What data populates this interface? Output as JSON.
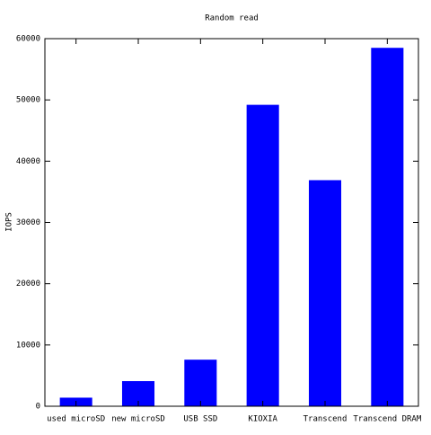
{
  "chart_data": {
    "type": "bar",
    "title": "Random read",
    "y_label": "IOPS",
    "categories": [
      "used microSD",
      "new microSD",
      "USB SSD",
      "KIOXIA",
      "Transcend",
      "Transcend DRAM"
    ],
    "values": [
      1400,
      4100,
      7600,
      49200,
      36900,
      58500
    ],
    "color": "#0000ff",
    "ylim": [
      0,
      60000
    ],
    "yticks": [
      0,
      10000,
      20000,
      30000,
      40000,
      50000,
      60000
    ],
    "grid": false
  }
}
